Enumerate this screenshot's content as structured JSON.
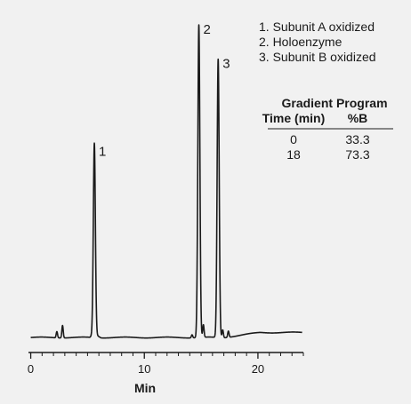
{
  "chart_data": {
    "type": "line",
    "xlabel": "Min",
    "xlim": [
      -0.2,
      24.0
    ],
    "ylim": [
      0,
      100
    ],
    "x_ticks": [
      0,
      10,
      20
    ],
    "grid": false,
    "legend": {
      "placement": "top-right",
      "entries": [
        "1. Subunit A oxidized",
        "2. Holoenzyme",
        "3. Subunit B oxidized"
      ]
    },
    "peaks": [
      {
        "label": "1",
        "x": 5.6,
        "height": 61
      },
      {
        "label": "2",
        "x": 14.8,
        "height": 100
      },
      {
        "label": "3",
        "x": 16.5,
        "height": 89
      }
    ],
    "minor_peaks": [
      {
        "x": 2.3,
        "height": 2
      },
      {
        "x": 2.8,
        "height": 4
      },
      {
        "x": 14.2,
        "height": 1
      },
      {
        "x": 15.2,
        "height": 4
      },
      {
        "x": 16.9,
        "height": 2.5
      },
      {
        "x": 17.4,
        "height": 2
      }
    ],
    "gradient_table": {
      "title": "Gradient Program",
      "columns": [
        "Time (min)",
        "%B"
      ],
      "rows": [
        [
          "0",
          "33.3"
        ],
        [
          "18",
          "73.3"
        ]
      ]
    }
  }
}
